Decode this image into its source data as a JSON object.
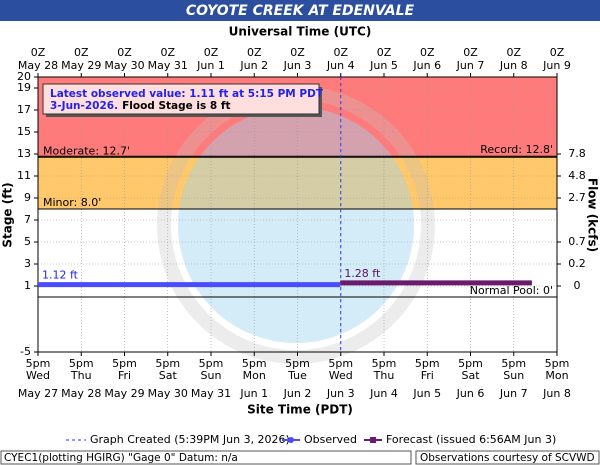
{
  "chart_data": {
    "type": "line",
    "title": "COYOTE CREEK AT EDENVALE",
    "subtitle": "Universal Time (UTC)",
    "xlabel": "Site Time (PDT)",
    "ylabel": "Stage (ft)",
    "y2label": "Flow (kcfs)",
    "xlim": [
      0,
      12
    ],
    "ylim": [
      -5,
      20
    ],
    "yticks": [
      -5,
      1,
      3,
      5,
      7,
      9,
      11,
      13,
      15,
      17,
      19,
      20
    ],
    "y2ticks": [
      7.8,
      4.8,
      2.7,
      0.7,
      0.2,
      0
    ],
    "y2tick_stages": [
      13,
      11,
      9,
      5,
      3,
      1
    ],
    "grid": true,
    "xticks": [
      {
        "value": 0,
        "time": "5pm",
        "day": "Wed",
        "date": "May 27"
      },
      {
        "value": 1,
        "time": "5pm",
        "day": "Thu",
        "date": "May 28"
      },
      {
        "value": 2,
        "time": "5pm",
        "day": "Fri",
        "date": "May 29"
      },
      {
        "value": 3,
        "time": "5pm",
        "day": "Sat",
        "date": "May 30"
      },
      {
        "value": 4,
        "time": "5pm",
        "day": "Sun",
        "date": "May 31"
      },
      {
        "value": 5,
        "time": "5pm",
        "day": "Mon",
        "date": "Jun 1"
      },
      {
        "value": 6,
        "time": "5pm",
        "day": "Tue",
        "date": "Jun 2"
      },
      {
        "value": 7,
        "time": "5pm",
        "day": "Wed",
        "date": "Jun 3"
      },
      {
        "value": 8,
        "time": "5pm",
        "day": "Thu",
        "date": "Jun 4"
      },
      {
        "value": 9,
        "time": "5pm",
        "day": "Fri",
        "date": "Jun 5"
      },
      {
        "value": 10,
        "time": "5pm",
        "day": "Sat",
        "date": "Jun 6"
      },
      {
        "value": 11,
        "time": "5pm",
        "day": "Sun",
        "date": "Jun 7"
      },
      {
        "value": 12,
        "time": "5pm",
        "day": "Mon",
        "date": "Jun 8"
      }
    ],
    "xticks_top": [
      {
        "value": 0,
        "time": "0Z",
        "date": "May 28"
      },
      {
        "value": 1,
        "time": "0Z",
        "date": "May 29"
      },
      {
        "value": 2,
        "time": "0Z",
        "date": "May 30"
      },
      {
        "value": 3,
        "time": "0Z",
        "date": "May 31"
      },
      {
        "value": 4,
        "time": "0Z",
        "date": "Jun 1"
      },
      {
        "value": 5,
        "time": "0Z",
        "date": "Jun 2"
      },
      {
        "value": 6,
        "time": "0Z",
        "date": "Jun 3"
      },
      {
        "value": 7,
        "time": "0Z",
        "date": "Jun 4"
      },
      {
        "value": 8,
        "time": "0Z",
        "date": "Jun 5"
      },
      {
        "value": 9,
        "time": "0Z",
        "date": "Jun 6"
      },
      {
        "value": 10,
        "time": "0Z",
        "date": "Jun 7"
      },
      {
        "value": 11,
        "time": "0Z",
        "date": "Jun 8"
      },
      {
        "value": 12,
        "time": "0Z",
        "date": "Jun 9"
      }
    ],
    "bands": [
      {
        "from": 12.7,
        "to": 20,
        "color": "#ff7b7b"
      },
      {
        "from": 8,
        "to": 12.7,
        "color": "#ffc86a"
      }
    ],
    "thresholds": [
      {
        "label": "Moderate: 12.7'",
        "value": 12.7,
        "side": "left"
      },
      {
        "label": "Record: 12.8'",
        "value": 12.8,
        "side": "right"
      },
      {
        "label": "Minor: 8.0'",
        "value": 8,
        "side": "left"
      },
      {
        "label": "Normal Pool: 0'",
        "value": 0,
        "side": "right"
      }
    ],
    "now": {
      "label": "Graph Created (5:39PM Jun 3, 2026)",
      "x": 7.0
    },
    "series": [
      {
        "name": "Observed",
        "color": "#4b4bff",
        "x": [
          0,
          3.5,
          6.99
        ],
        "values": [
          1.12,
          1.12,
          1.12
        ],
        "value_labels": [
          "1.12 ft",
          null,
          null
        ]
      },
      {
        "name": "Forecast (issued 6:56AM Jun 3)",
        "color": "#6a1b6e",
        "x": [
          6.99,
          9,
          11.42
        ],
        "values": [
          1.28,
          1.28,
          1.28
        ],
        "value_labels": [
          "1.28 ft",
          null,
          null
        ]
      }
    ],
    "info": {
      "line1": "Latest observed value: 1.11 ft at 5:15 PM PDT",
      "line2a": "3-Jun-2026.",
      "line2b": "Flood Stage is 8 ft"
    },
    "footer": {
      "left": "CYEC1(plotting HGIRG) \"Gage 0\" Datum: n/a",
      "right": "Observations courtesy of SCVWD"
    }
  }
}
